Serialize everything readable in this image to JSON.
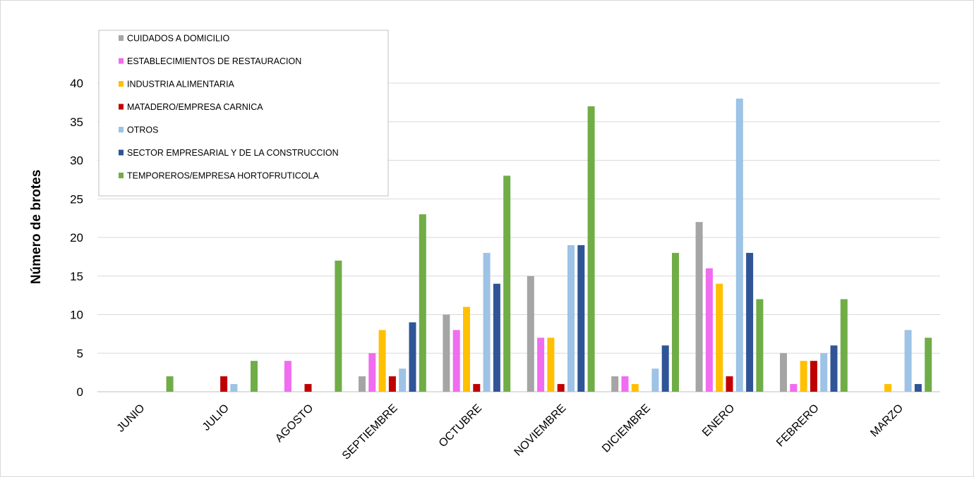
{
  "chart_data": {
    "type": "bar",
    "ylabel": "Número de brotes",
    "xlabel": "",
    "ylim": [
      0,
      40
    ],
    "yticks": [
      0,
      5,
      10,
      15,
      20,
      25,
      30,
      35,
      40
    ],
    "grid": "horizontal",
    "legend_position": "top-left",
    "categories": [
      "JUNIO",
      "JULIO",
      "AGOSTO",
      "SEPTIEMBRE",
      "OCTUBRE",
      "NOVIEMBRE",
      "DICIEMBRE",
      "ENERO",
      "FEBRERO",
      "MARZO"
    ],
    "series": [
      {
        "name": "CUIDADOS A DOMICILIO",
        "color": "#a5a5a5",
        "values": [
          0,
          0,
          0,
          2,
          10,
          15,
          2,
          22,
          5,
          0
        ]
      },
      {
        "name": "ESTABLECIMIENTOS DE RESTAURACION",
        "color": "#f06cf0",
        "values": [
          0,
          0,
          4,
          5,
          8,
          7,
          2,
          16,
          1,
          0
        ]
      },
      {
        "name": "INDUSTRIA ALIMENTARIA",
        "color": "#ffc000",
        "values": [
          0,
          0,
          0,
          8,
          11,
          7,
          1,
          14,
          4,
          1
        ]
      },
      {
        "name": "MATADERO/EMPRESA CARNICA",
        "color": "#c00000",
        "values": [
          0,
          2,
          1,
          2,
          1,
          1,
          0,
          2,
          4,
          0
        ]
      },
      {
        "name": "OTROS",
        "color": "#9dc3e6",
        "values": [
          0,
          1,
          0,
          3,
          18,
          19,
          3,
          38,
          5,
          8
        ]
      },
      {
        "name": "SECTOR EMPRESARIAL Y DE LA CONSTRUCCION",
        "color": "#2f5597",
        "values": [
          0,
          0,
          0,
          9,
          14,
          19,
          6,
          18,
          6,
          1
        ]
      },
      {
        "name": "TEMPOREROS/EMPRESA HORTOFRUTICOLA",
        "color": "#70ad47",
        "values": [
          2,
          4,
          17,
          23,
          28,
          37,
          18,
          12,
          12,
          7
        ]
      }
    ]
  }
}
